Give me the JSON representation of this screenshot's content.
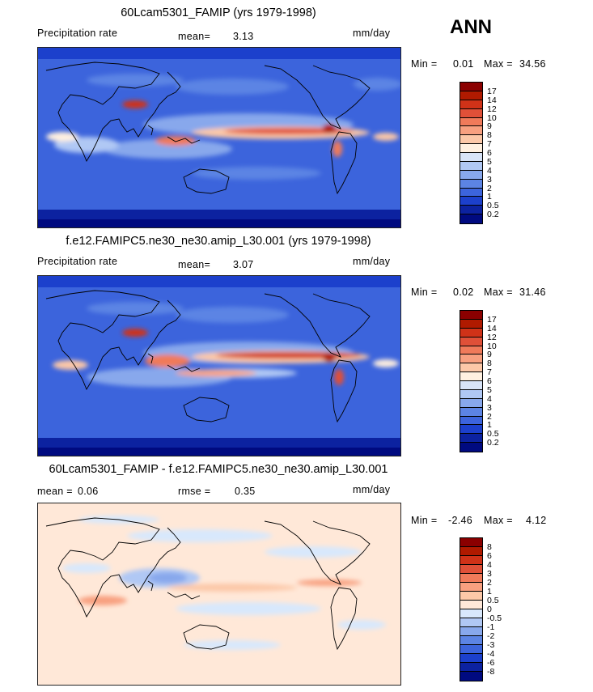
{
  "season": "ANN",
  "panels": [
    {
      "title": "60Lcam5301_FAMIP (yrs 1979-1998)",
      "left_label": "Precipitation rate",
      "stat_label": "mean=",
      "stat_value": "3.13",
      "units": "mm/day",
      "min_label": "Min =",
      "min_value": "0.01",
      "max_label": "Max =",
      "max_value": "34.56",
      "levels": [
        "17",
        "14",
        "12",
        "10",
        "9",
        "8",
        "7",
        "6",
        "5",
        "4",
        "3",
        "2",
        "1",
        "0.5",
        "0.2"
      ],
      "colors": [
        "#8b0000",
        "#b01a00",
        "#d03218",
        "#e05038",
        "#f07a5a",
        "#f8a080",
        "#fcc8a8",
        "#fff0e0",
        "#d8e4f8",
        "#b0c8f4",
        "#88a8ec",
        "#5c84e4",
        "#3c64dc",
        "#1c40cc",
        "#0c22a0",
        "#000a80"
      ]
    },
    {
      "title": "f.e12.FAMIPC5.ne30_ne30.amip_L30.001 (yrs 1979-1998)",
      "left_label": "Precipitation rate",
      "stat_label": "mean=",
      "stat_value": "3.07",
      "units": "mm/day",
      "min_label": "Min =",
      "min_value": "0.02",
      "max_label": "Max =",
      "max_value": "31.46",
      "levels": [
        "17",
        "14",
        "12",
        "10",
        "9",
        "8",
        "7",
        "6",
        "5",
        "4",
        "3",
        "2",
        "1",
        "0.5",
        "0.2"
      ],
      "colors": [
        "#8b0000",
        "#b01a00",
        "#d03218",
        "#e05038",
        "#f07a5a",
        "#f8a080",
        "#fcc8a8",
        "#fff0e0",
        "#d8e4f8",
        "#b0c8f4",
        "#88a8ec",
        "#5c84e4",
        "#3c64dc",
        "#1c40cc",
        "#0c22a0",
        "#000a80"
      ]
    },
    {
      "title": "60Lcam5301_FAMIP - f.e12.FAMIPC5.ne30_ne30.amip_L30.001",
      "mean_label": "mean =",
      "mean_value": "0.06",
      "rmse_label": "rmse =",
      "rmse_value": "0.35",
      "units": "mm/day",
      "min_label": "Min =",
      "min_value": "-2.46",
      "max_label": "Max =",
      "max_value": "4.12",
      "levels": [
        "8",
        "6",
        "4",
        "3",
        "2",
        "1",
        "0.5",
        "0",
        "-0.5",
        "-1",
        "-2",
        "-3",
        "-4",
        "-6",
        "-8"
      ],
      "colors": [
        "#8b0000",
        "#b01a00",
        "#d03218",
        "#e05038",
        "#f07a5a",
        "#f8a080",
        "#fcc8a8",
        "#ffe8d8",
        "#d8e8fc",
        "#b0c8f4",
        "#88a8ec",
        "#5c84e4",
        "#3c64dc",
        "#1c40cc",
        "#0c22a0",
        "#000a80"
      ]
    }
  ]
}
